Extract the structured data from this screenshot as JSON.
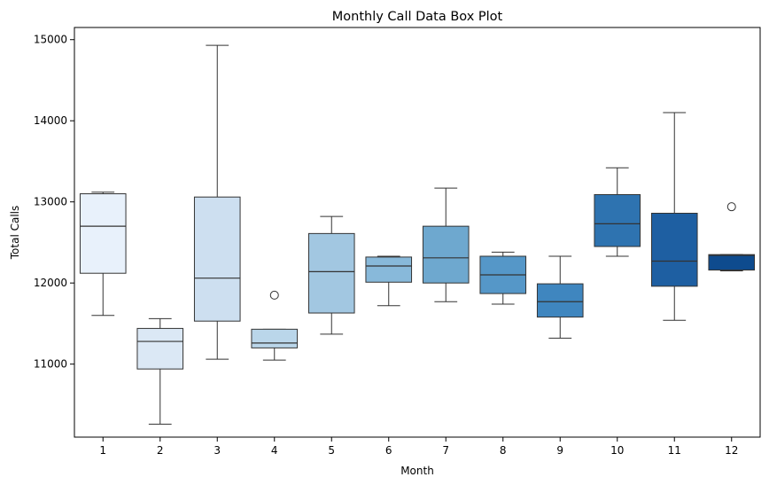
{
  "chart_data": {
    "type": "box",
    "title": "Monthly Call Data Box Plot",
    "xlabel": "Month",
    "ylabel": "Total Calls",
    "ylim": [
      10100,
      15150
    ],
    "yticks": [
      11000,
      12000,
      13000,
      14000,
      15000
    ],
    "grid": false,
    "legend": "none",
    "categories": [
      "1",
      "2",
      "3",
      "4",
      "5",
      "6",
      "7",
      "8",
      "9",
      "10",
      "11",
      "12"
    ],
    "boxes": [
      {
        "category": "1",
        "color": "#e8f1fb",
        "whisker_low": 11600,
        "q1": 12120,
        "median": 12700,
        "q3": 13100,
        "whisker_high": 13120,
        "outliers": []
      },
      {
        "category": "2",
        "color": "#dbe8f5",
        "whisker_low": 10260,
        "q1": 10940,
        "median": 11280,
        "q3": 11440,
        "whisker_high": 11560,
        "outliers": []
      },
      {
        "category": "3",
        "color": "#cddff0",
        "whisker_low": 11060,
        "q1": 11530,
        "median": 12060,
        "q3": 13060,
        "whisker_high": 14930,
        "outliers": []
      },
      {
        "category": "4",
        "color": "#bad6ea",
        "whisker_low": 11050,
        "q1": 11200,
        "median": 11260,
        "q3": 11430,
        "whisker_high": 11430,
        "outliers": [
          11850
        ]
      },
      {
        "category": "5",
        "color": "#a2c7e1",
        "whisker_low": 11370,
        "q1": 11630,
        "median": 12140,
        "q3": 12610,
        "whisker_high": 12820,
        "outliers": []
      },
      {
        "category": "6",
        "color": "#88b9da",
        "whisker_low": 11720,
        "q1": 12010,
        "median": 12210,
        "q3": 12320,
        "whisker_high": 12330,
        "outliers": []
      },
      {
        "category": "7",
        "color": "#6ea8cf",
        "whisker_low": 11770,
        "q1": 12000,
        "median": 12310,
        "q3": 12700,
        "whisker_high": 13170,
        "outliers": []
      },
      {
        "category": "8",
        "color": "#5597c8",
        "whisker_low": 11740,
        "q1": 11870,
        "median": 12100,
        "q3": 12330,
        "whisker_high": 12380,
        "outliers": []
      },
      {
        "category": "9",
        "color": "#3f86bf",
        "whisker_low": 11320,
        "q1": 11580,
        "median": 11770,
        "q3": 11990,
        "whisker_high": 12330,
        "outliers": []
      },
      {
        "category": "10",
        "color": "#2e73b0",
        "whisker_low": 12330,
        "q1": 12450,
        "median": 12730,
        "q3": 13090,
        "whisker_high": 13420,
        "outliers": []
      },
      {
        "category": "11",
        "color": "#1e5fa2",
        "whisker_low": 11540,
        "q1": 11960,
        "median": 12270,
        "q3": 12860,
        "whisker_high": 14100,
        "outliers": []
      },
      {
        "category": "12",
        "color": "#0e4b8e",
        "whisker_low": 12150,
        "q1": 12160,
        "median": 12340,
        "q3": 12350,
        "whisker_high": 12350,
        "outliers": [
          12940
        ]
      }
    ]
  }
}
